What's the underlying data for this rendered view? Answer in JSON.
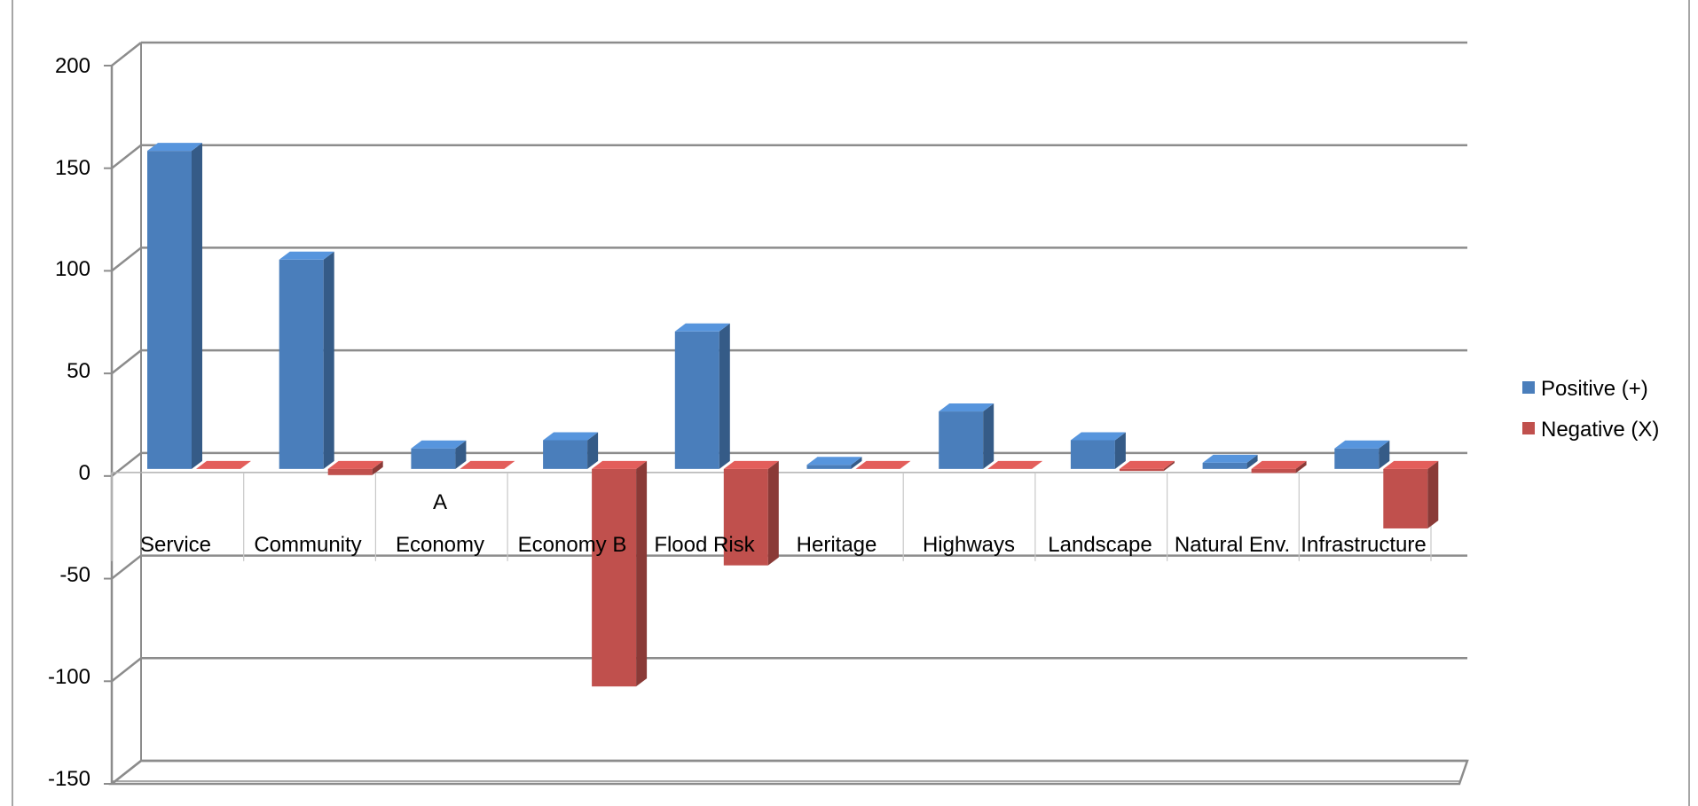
{
  "chart_data": {
    "type": "bar",
    "style": "3d-clustered-column",
    "categories": [
      "Service",
      "Community",
      "Economy",
      "Economy B",
      "Flood Risk",
      "Heritage",
      "Highways",
      "Landscape",
      "Natural Env.",
      "Infrastructure"
    ],
    "category_sublabels": [
      "",
      "",
      "A",
      "",
      "",
      "",
      "",
      "",
      "",
      ""
    ],
    "series": [
      {
        "name": "Positive (+)",
        "color": "#4a7ebb",
        "values": [
          155,
          102,
          10,
          14,
          67,
          2,
          28,
          14,
          3,
          10
        ]
      },
      {
        "name": "Negative (X)",
        "color": "#c0504d",
        "values": [
          0,
          -3,
          0,
          -106,
          -47,
          0,
          0,
          -1,
          -2,
          -29
        ]
      }
    ],
    "y_ticks": [
      "200",
      "150",
      "100",
      "50",
      "0",
      "-50",
      "-100",
      "-150"
    ],
    "ylim": [
      -150,
      200
    ],
    "grid": true,
    "legend_position": "right",
    "xlabel": "",
    "ylabel": ""
  }
}
